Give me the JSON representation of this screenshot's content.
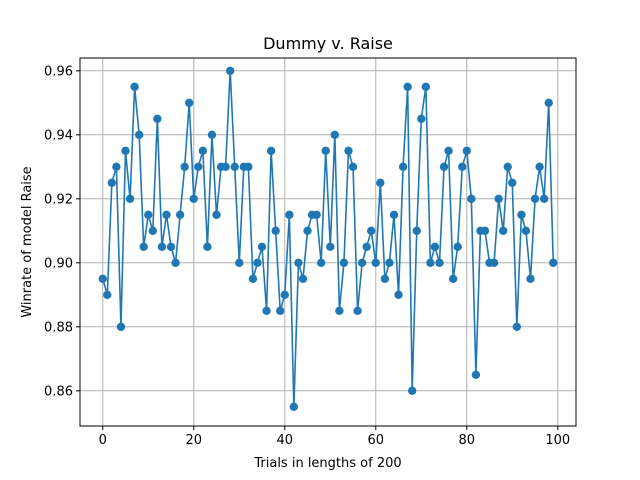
{
  "chart_data": {
    "type": "line",
    "title": "Dummy v. Raise",
    "xlabel": "Trials in lengths of 200",
    "ylabel": "Winrate of model Raise",
    "xlim": [
      -5,
      104
    ],
    "ylim": [
      0.849,
      0.964
    ],
    "xticks": [
      0,
      20,
      40,
      60,
      80,
      100
    ],
    "yticks": [
      0.86,
      0.88,
      0.9,
      0.92,
      0.94,
      0.96
    ],
    "ytick_labels": [
      "0.86",
      "0.88",
      "0.90",
      "0.92",
      "0.94",
      "0.96"
    ],
    "grid": true,
    "marker": "circle",
    "color": "#1f77b4",
    "series": [
      {
        "x": [
          0,
          1,
          2,
          3,
          4,
          5,
          6,
          7,
          8,
          9,
          10,
          11,
          12,
          13,
          14,
          15,
          16,
          17,
          18,
          19,
          20,
          21,
          22,
          23,
          24,
          25,
          26,
          27,
          28,
          29,
          30,
          31,
          32,
          33,
          34,
          35,
          36,
          37,
          38,
          39,
          40,
          41,
          42,
          43,
          44,
          45,
          46,
          47,
          48,
          49,
          50,
          51,
          52,
          53,
          54,
          55,
          56,
          57,
          58,
          59,
          60,
          61,
          62,
          63,
          64,
          65,
          66,
          67,
          68,
          69,
          70,
          71,
          72,
          73,
          74,
          75,
          76,
          77,
          78,
          79,
          80,
          81,
          82,
          83,
          84,
          85,
          86,
          87,
          88,
          89,
          90,
          91,
          92,
          93,
          94,
          95,
          96,
          97,
          98,
          99
        ],
        "y": [
          0.895,
          0.89,
          0.925,
          0.93,
          0.88,
          0.935,
          0.92,
          0.955,
          0.94,
          0.905,
          0.915,
          0.91,
          0.945,
          0.905,
          0.915,
          0.905,
          0.9,
          0.915,
          0.93,
          0.95,
          0.92,
          0.93,
          0.935,
          0.905,
          0.94,
          0.915,
          0.93,
          0.93,
          0.96,
          0.93,
          0.9,
          0.93,
          0.93,
          0.895,
          0.9,
          0.905,
          0.885,
          0.935,
          0.91,
          0.885,
          0.89,
          0.915,
          0.855,
          0.9,
          0.895,
          0.91,
          0.915,
          0.915,
          0.9,
          0.935,
          0.905,
          0.94,
          0.885,
          0.9,
          0.935,
          0.93,
          0.885,
          0.9,
          0.905,
          0.91,
          0.9,
          0.925,
          0.895,
          0.9,
          0.915,
          0.89,
          0.93,
          0.955,
          0.86,
          0.91,
          0.945,
          0.955,
          0.9,
          0.905,
          0.9,
          0.93,
          0.935,
          0.895,
          0.905,
          0.93,
          0.935,
          0.92,
          0.865,
          0.91,
          0.91,
          0.9,
          0.9,
          0.92,
          0.91,
          0.93,
          0.925,
          0.88,
          0.915,
          0.91,
          0.895,
          0.92,
          0.93,
          0.92,
          0.95,
          0.9
        ]
      }
    ]
  }
}
